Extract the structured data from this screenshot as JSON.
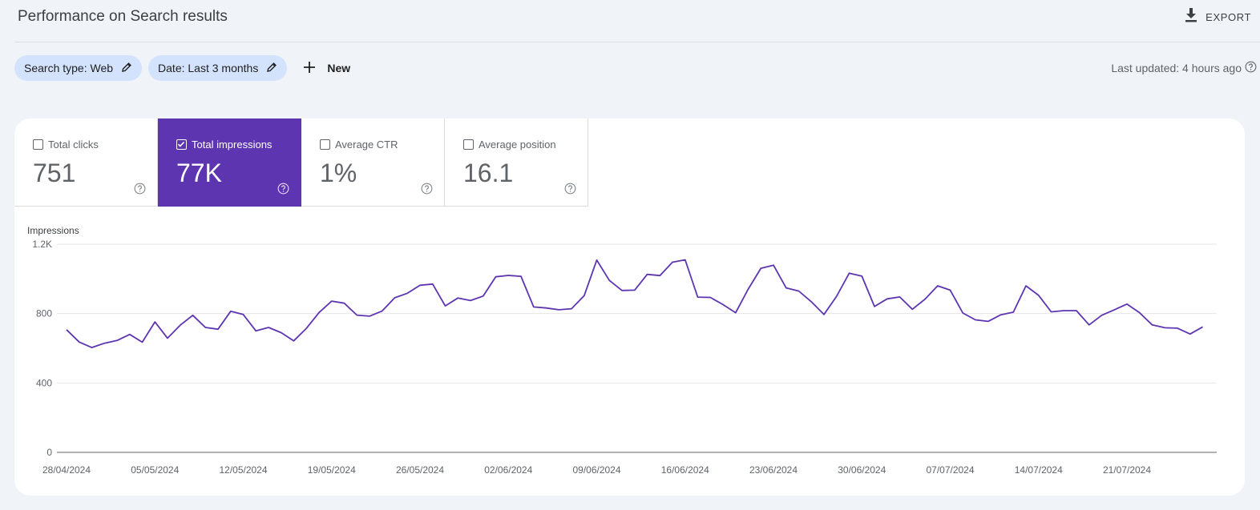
{
  "header": {
    "title": "Performance on Search results",
    "export_label": "EXPORT"
  },
  "filters": {
    "chips": [
      {
        "label": "Search type: Web"
      },
      {
        "label": "Date: Last 3 months"
      }
    ],
    "new_label": "New"
  },
  "last_updated": "Last updated: 4 hours ago",
  "metrics": [
    {
      "label": "Total clicks",
      "value": "751",
      "checked": false
    },
    {
      "label": "Total impressions",
      "value": "77K",
      "checked": true
    },
    {
      "label": "Average CTR",
      "value": "1%",
      "checked": false
    },
    {
      "label": "Average position",
      "value": "16.1",
      "checked": false
    }
  ],
  "colors": {
    "accent": "#5e35b1",
    "chip": "#d3e3fd",
    "background": "#f0f4f9",
    "line": "#5e35b1"
  },
  "chart_data": {
    "type": "line",
    "ylabel": "Impressions",
    "ylim": [
      0,
      1200
    ],
    "yticks": [
      "0",
      "400",
      "800",
      "1.2K"
    ],
    "yticks_values": [
      0,
      400,
      800,
      1200
    ],
    "xtick_labels": [
      "28/04/2024",
      "05/05/2024",
      "12/05/2024",
      "19/05/2024",
      "26/05/2024",
      "02/06/2024",
      "09/06/2024",
      "16/06/2024",
      "23/06/2024",
      "30/06/2024",
      "07/07/2024",
      "14/07/2024",
      "21/07/2024"
    ],
    "grid": true,
    "series": [
      {
        "values": [
          707,
          636,
          604,
          629,
          645,
          680,
          635,
          752,
          658,
          733,
          790,
          720,
          710,
          813,
          795,
          700,
          720,
          690,
          643,
          715,
          806,
          872,
          860,
          791,
          785,
          815,
          891,
          917,
          963,
          970,
          844,
          890,
          875,
          901,
          1012,
          1020,
          1015,
          838,
          832,
          822,
          828,
          903,
          1108,
          991,
          933,
          935,
          1026,
          1019,
          1096,
          1110,
          895,
          893,
          852,
          805,
          941,
          1061,
          1079,
          948,
          930,
          868,
          795,
          900,
          1033,
          1016,
          841,
          885,
          896,
          825,
          883,
          960,
          935,
          803,
          764,
          755,
          793,
          808,
          960,
          905,
          810,
          817,
          817,
          735,
          790,
          822,
          855,
          805,
          735,
          718,
          716,
          682,
          723
        ]
      }
    ]
  }
}
